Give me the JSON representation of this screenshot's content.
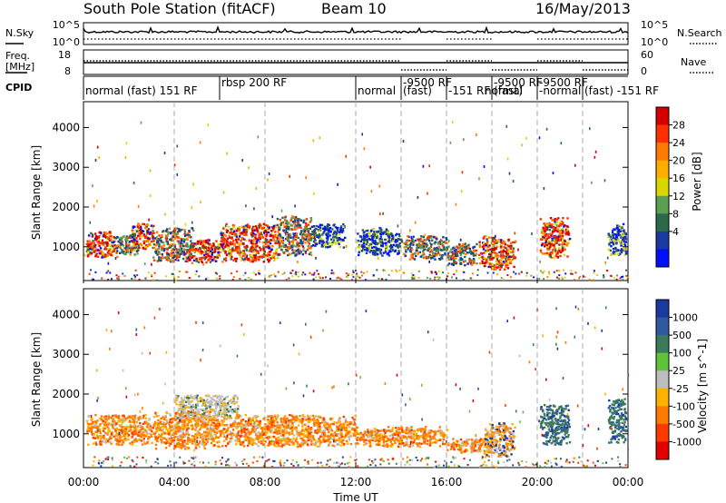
{
  "header": {
    "station": "South Pole Station (fitACF)",
    "beam": "Beam 10",
    "date": "16/May/2013"
  },
  "nsky_panel": {
    "label": "N.Sky",
    "right_label": "N.Search",
    "ticks_left": [
      "10^5",
      "10^0"
    ],
    "ticks_right": [
      "10^5",
      "10^0"
    ]
  },
  "freq_panel": {
    "label_line1": "Freq.",
    "label_line2": "[MHz]",
    "right_label": "Nave",
    "ticks_left": [
      "18",
      "8"
    ],
    "ticks_right": [
      "60",
      "0"
    ]
  },
  "cpid": {
    "label": "CPID",
    "segments": [
      {
        "start": 0.0,
        "end": 6.0,
        "text": "normal (fast) 151 RF",
        "row": 1
      },
      {
        "start": 6.0,
        "end": 12.0,
        "text": "rbsp 200 RF",
        "row": 0
      },
      {
        "start": 12.0,
        "end": 14.0,
        "text": "normal",
        "row": 1
      },
      {
        "start": 14.0,
        "end": 16.0,
        "text": "-9500 RF",
        "row": 0
      },
      {
        "start": 14.0,
        "end": 16.0,
        "text": "(fast)",
        "row": 1
      },
      {
        "start": 16.0,
        "end": 18.0,
        "text": "-151 RF",
        "row": 1
      },
      {
        "start": 16.0,
        "end": 18.0,
        "text": "normal",
        "row": 1
      },
      {
        "start": 18.0,
        "end": 20.0,
        "text": "-9500 RF",
        "row": 0
      },
      {
        "start": 18.0,
        "end": 20.0,
        "text": "(fast)",
        "row": 1
      },
      {
        "start": 20.0,
        "end": 22.0,
        "text": "-9500 RF",
        "row": 0
      },
      {
        "start": 20.0,
        "end": 22.0,
        "text": "-normal",
        "row": 1
      },
      {
        "start": 22.0,
        "end": 24.0,
        "text": "(fast) -151 RF",
        "row": 1
      }
    ]
  },
  "colorbars": {
    "power": {
      "label": "Power [dB]",
      "ticks": [
        "28",
        "24",
        "20",
        "16",
        "12",
        "8",
        "4"
      ],
      "colors": [
        "#d40000",
        "#ff3000",
        "#ff7a00",
        "#ffae00",
        "#d8d800",
        "#5aa050",
        "#2a6a4a",
        "#1a3aa0",
        "#0010ff"
      ]
    },
    "velocity": {
      "label": "Velocity [m s^-1]",
      "ticks": [
        "1000",
        "500",
        "100",
        "25",
        "-25",
        "-100",
        "-500",
        "-1000"
      ],
      "colors": [
        "#1a3aa0",
        "#2f5aa0",
        "#3a7a5a",
        "#5fc23a",
        "#bdbdbd",
        "#ffb000",
        "#ff7a00",
        "#ff3a00",
        "#e00000"
      ]
    }
  },
  "chart_data": [
    {
      "type": "heatmap",
      "name": "power",
      "ylabel": "Slant Range [km]",
      "y_ticks": [
        "1000",
        "2000",
        "3000",
        "4000"
      ],
      "ylim": [
        150,
        4650
      ],
      "xlim": [
        0,
        24
      ],
      "blobs": [
        {
          "t0": 0.1,
          "t1": 1.5,
          "r0": 750,
          "r1": 1400,
          "level": "high"
        },
        {
          "t0": 1.4,
          "t1": 2.4,
          "r0": 800,
          "r1": 1300,
          "level": "mid"
        },
        {
          "t0": 2.0,
          "t1": 3.1,
          "r0": 950,
          "r1": 1600,
          "level": "high"
        },
        {
          "t0": 3.0,
          "t1": 4.8,
          "r0": 650,
          "r1": 1500,
          "level": "mid"
        },
        {
          "t0": 4.6,
          "t1": 6.0,
          "r0": 600,
          "r1": 1200,
          "level": "high"
        },
        {
          "t0": 6.0,
          "t1": 8.6,
          "r0": 650,
          "r1": 1600,
          "level": "high"
        },
        {
          "t0": 8.5,
          "t1": 10.0,
          "r0": 800,
          "r1": 1800,
          "level": "mid"
        },
        {
          "t0": 10.0,
          "t1": 11.5,
          "r0": 1000,
          "r1": 1600,
          "level": "low"
        },
        {
          "t0": 12.0,
          "t1": 14.0,
          "r0": 800,
          "r1": 1500,
          "level": "low"
        },
        {
          "t0": 14.0,
          "t1": 16.0,
          "r0": 700,
          "r1": 1300,
          "level": "mid"
        },
        {
          "t0": 16.0,
          "t1": 17.3,
          "r0": 550,
          "r1": 1100,
          "level": "mid"
        },
        {
          "t0": 17.4,
          "t1": 19.0,
          "r0": 450,
          "r1": 1300,
          "level": "high"
        },
        {
          "t0": 20.1,
          "t1": 21.4,
          "r0": 750,
          "r1": 1750,
          "level": "high"
        },
        {
          "t0": 23.1,
          "t1": 23.9,
          "r0": 800,
          "r1": 1600,
          "level": "low"
        }
      ]
    },
    {
      "type": "heatmap",
      "name": "velocity",
      "xlabel": "Time UT",
      "ylabel": "Slant Range [km]",
      "x_ticks": [
        "00:00",
        "04:00",
        "08:00",
        "12:00",
        "16:00",
        "20:00",
        "00:00"
      ],
      "y_ticks": [
        "1000",
        "2000",
        "3000",
        "4000"
      ],
      "ylim": [
        150,
        4650
      ],
      "xlim": [
        0,
        24
      ],
      "blobs": [
        {
          "t0": 0.1,
          "t1": 3.0,
          "r0": 750,
          "r1": 1500,
          "level": "neg"
        },
        {
          "t0": 3.0,
          "t1": 6.0,
          "r0": 650,
          "r1": 1600,
          "level": "neg"
        },
        {
          "t0": 4.0,
          "t1": 6.8,
          "r0": 1400,
          "r1": 2000,
          "level": "zero"
        },
        {
          "t0": 6.0,
          "t1": 12.0,
          "r0": 700,
          "r1": 1500,
          "level": "neg"
        },
        {
          "t0": 12.0,
          "t1": 16.0,
          "r0": 700,
          "r1": 1200,
          "level": "neg"
        },
        {
          "t0": 16.0,
          "t1": 18.0,
          "r0": 550,
          "r1": 900,
          "level": "neg"
        },
        {
          "t0": 17.6,
          "t1": 19.0,
          "r0": 450,
          "r1": 1300,
          "level": "mix"
        },
        {
          "t0": 20.1,
          "t1": 21.4,
          "r0": 750,
          "r1": 1750,
          "level": "pos"
        },
        {
          "t0": 23.1,
          "t1": 23.9,
          "r0": 800,
          "r1": 1900,
          "level": "pos"
        }
      ]
    }
  ]
}
